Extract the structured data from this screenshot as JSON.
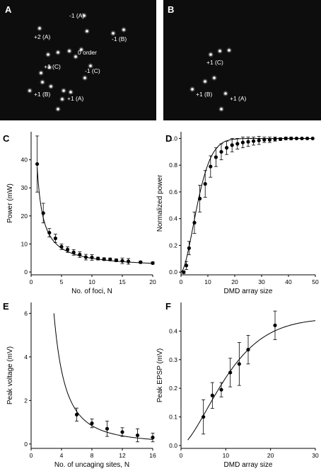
{
  "panels": {
    "A": {
      "label": "A",
      "spots": [
        {
          "text": "-1 (A)"
        },
        {
          "text": "-1 (B)"
        },
        {
          "text": "+2 (A)"
        },
        {
          "text": "0 order"
        },
        {
          "text": "+1 (C)"
        },
        {
          "text": "-1 (C)"
        },
        {
          "text": "+1 (B)"
        },
        {
          "text": "+1 (A)"
        }
      ]
    },
    "B": {
      "label": "B",
      "spots": [
        {
          "text": "+1 (C)"
        },
        {
          "text": "+1 (B)"
        },
        {
          "text": "+1 (A)"
        }
      ]
    }
  },
  "chart_data": [
    {
      "id": "C",
      "panel_label": "C",
      "type": "scatter",
      "xlabel": "No. of foci, N",
      "ylabel": "Power (mW)",
      "xlim": [
        0,
        20
      ],
      "ylim": [
        -1,
        50
      ],
      "xticks": [
        0,
        5,
        10,
        15,
        20
      ],
      "yticks": [
        0,
        10,
        20,
        30,
        40
      ],
      "grid": false,
      "points": [
        {
          "x": 1,
          "y": 38.5,
          "err": 10
        },
        {
          "x": 2,
          "y": 21,
          "err": 3.5
        },
        {
          "x": 3,
          "y": 14,
          "err": 1.5
        },
        {
          "x": 4,
          "y": 12,
          "err": 1.5
        },
        {
          "x": 5,
          "y": 9,
          "err": 1
        },
        {
          "x": 6,
          "y": 8,
          "err": 1
        },
        {
          "x": 7,
          "y": 7,
          "err": 1
        },
        {
          "x": 8,
          "y": 6.2,
          "err": 1
        },
        {
          "x": 9,
          "y": 5.3,
          "err": 1
        },
        {
          "x": 10,
          "y": 5.2,
          "err": 1
        },
        {
          "x": 11,
          "y": 4.8,
          "err": 0.5
        },
        {
          "x": 12,
          "y": 4.6,
          "err": 0.5
        },
        {
          "x": 13,
          "y": 4.5,
          "err": 0.5
        },
        {
          "x": 14,
          "y": 4.2,
          "err": 0.5
        },
        {
          "x": 15,
          "y": 4,
          "err": 1
        },
        {
          "x": 16,
          "y": 3.8,
          "err": 1
        },
        {
          "x": 18,
          "y": 3.5,
          "err": 0.4
        },
        {
          "x": 20,
          "y": 3.2,
          "err": 0.4
        }
      ],
      "fit": {
        "form": "a/x+b",
        "a": 36,
        "b": 1.3,
        "x_range": [
          1,
          20
        ]
      }
    },
    {
      "id": "D",
      "panel_label": "D",
      "type": "scatter",
      "xlabel": "DMD array size",
      "ylabel": "Normalized power",
      "xlim": [
        0,
        50
      ],
      "ylim": [
        -0.02,
        1.05
      ],
      "xticks": [
        0,
        10,
        20,
        30,
        40,
        50
      ],
      "yticks": [
        0.0,
        0.2,
        0.4,
        0.6,
        0.8,
        1.0
      ],
      "ytick_labels": [
        "0.0",
        "0.2",
        "0.4",
        "0.6",
        "0.8",
        "1.0"
      ],
      "grid": false,
      "points": [
        {
          "x": 1,
          "y": 0.0,
          "err": 0.01
        },
        {
          "x": 2,
          "y": 0.05,
          "err": 0.03
        },
        {
          "x": 3,
          "y": 0.18,
          "err": 0.05
        },
        {
          "x": 5,
          "y": 0.37,
          "err": 0.08
        },
        {
          "x": 7,
          "y": 0.55,
          "err": 0.1
        },
        {
          "x": 9,
          "y": 0.66,
          "err": 0.1
        },
        {
          "x": 11,
          "y": 0.79,
          "err": 0.08
        },
        {
          "x": 13,
          "y": 0.86,
          "err": 0.07
        },
        {
          "x": 15,
          "y": 0.9,
          "err": 0.06
        },
        {
          "x": 17,
          "y": 0.93,
          "err": 0.05
        },
        {
          "x": 19,
          "y": 0.95,
          "err": 0.05
        },
        {
          "x": 21,
          "y": 0.96,
          "err": 0.04
        },
        {
          "x": 23,
          "y": 0.97,
          "err": 0.04
        },
        {
          "x": 25,
          "y": 0.975,
          "err": 0.035
        },
        {
          "x": 27,
          "y": 0.98,
          "err": 0.03
        },
        {
          "x": 29,
          "y": 0.985,
          "err": 0.03
        },
        {
          "x": 31,
          "y": 0.99,
          "err": 0.02
        },
        {
          "x": 33,
          "y": 0.99,
          "err": 0.02
        },
        {
          "x": 35,
          "y": 0.995,
          "err": 0.015
        },
        {
          "x": 37,
          "y": 0.995,
          "err": 0.01
        },
        {
          "x": 39,
          "y": 1.0,
          "err": 0.01
        },
        {
          "x": 41,
          "y": 1.0,
          "err": 0.01
        },
        {
          "x": 43,
          "y": 1.0,
          "err": 0.005
        },
        {
          "x": 45,
          "y": 1.0,
          "err": 0.005
        },
        {
          "x": 47,
          "y": 1.0,
          "err": 0.005
        },
        {
          "x": 49,
          "y": 1.0,
          "err": 0.0
        }
      ],
      "fit": {
        "form": "1-exp(-(x/c)^k)",
        "c": 7.5,
        "k": 1.7,
        "x_range": [
          0,
          49
        ]
      }
    },
    {
      "id": "E",
      "panel_label": "E",
      "type": "scatter",
      "xlabel": "No. of uncaging sites, N",
      "ylabel": "Peak voltage (mV)",
      "xlim": [
        0,
        16
      ],
      "ylim": [
        -0.2,
        6.5
      ],
      "xticks": [
        0,
        4,
        8,
        12,
        16
      ],
      "yticks": [
        0,
        2,
        4,
        6
      ],
      "grid": false,
      "points": [
        {
          "x": 6,
          "y": 1.35,
          "err": 0.3
        },
        {
          "x": 8,
          "y": 0.95,
          "err": 0.2
        },
        {
          "x": 10,
          "y": 0.7,
          "err": 0.35
        },
        {
          "x": 12,
          "y": 0.55,
          "err": 0.2
        },
        {
          "x": 14,
          "y": 0.4,
          "err": 0.3
        },
        {
          "x": 16,
          "y": 0.3,
          "err": 0.2
        }
      ],
      "fit": {
        "form": "a/x^2",
        "a": 54,
        "x_range": [
          3,
          16
        ]
      }
    },
    {
      "id": "F",
      "panel_label": "F",
      "type": "scatter",
      "xlabel": "DMD array size",
      "ylabel": "Peak EPSP (mV)",
      "xlim": [
        0,
        30
      ],
      "ylim": [
        -0.01,
        0.5
      ],
      "xticks": [
        0,
        10,
        20,
        30
      ],
      "yticks": [
        0.0,
        0.1,
        0.2,
        0.3,
        0.4
      ],
      "ytick_labels": [
        "0.0",
        "0.1",
        "0.2",
        "0.3",
        "0.4"
      ],
      "grid": false,
      "points": [
        {
          "x": 5,
          "y": 0.1,
          "err": 0.06
        },
        {
          "x": 7,
          "y": 0.175,
          "err": 0.045
        },
        {
          "x": 9,
          "y": 0.195,
          "err": 0.025
        },
        {
          "x": 11,
          "y": 0.255,
          "err": 0.05
        },
        {
          "x": 13,
          "y": 0.285,
          "err": 0.075
        },
        {
          "x": 15,
          "y": 0.335,
          "err": 0.05
        },
        {
          "x": 21,
          "y": 0.42,
          "err": 0.05
        }
      ],
      "fit": {
        "form": "1-exp(-(x/c)^k)",
        "scale": 0.445,
        "c": 12,
        "k": 1.5,
        "x_range": [
          1.5,
          30
        ]
      }
    }
  ]
}
